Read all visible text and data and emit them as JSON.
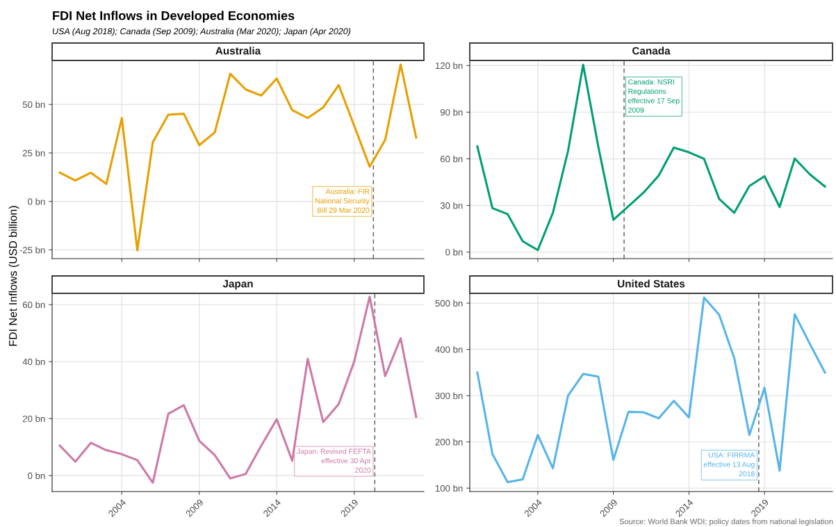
{
  "chart_data": [
    {
      "type": "line",
      "title": "Australia",
      "ylabel": "FDI Net Inflows (USD billion)",
      "annotations": [
        "FDI Net Inflows in Developed Economies",
        "USA (Aug 2018); Canada (Sep 2009); Australia (Mar 2020); Japan (Apr 2020)",
        {
          "text": "Australia: FIR\nNational Security\nBill 29 Mar 2020",
          "x": 2020.24,
          "y": 0
        }
      ],
      "x": [
        2000,
        2001,
        2002,
        2003,
        2004,
        2005,
        2006,
        2007,
        2008,
        2009,
        2010,
        2011,
        2012,
        2013,
        2014,
        2015,
        2016,
        2017,
        2018,
        2019,
        2020,
        2021,
        2022,
        2023
      ],
      "series": [
        {
          "color": "#e69f00",
          "values": [
            14.8,
            10.8,
            14.8,
            9.0,
            43.0,
            -25.2,
            30.5,
            44.7,
            45.2,
            29.0,
            35.6,
            65.8,
            57.7,
            54.6,
            63.4,
            47.1,
            43.0,
            48.5,
            60,
            39,
            17.9,
            31.7,
            70.6,
            32.9
          ]
        }
      ],
      "xlim": [
        1999.5,
        2023.5
      ],
      "xticks": [
        2004,
        2009,
        2014,
        2019
      ],
      "ylim": [
        -29.5,
        72.3
      ],
      "yticks": [
        {
          "value": -25,
          "label": "-25 bn"
        },
        {
          "value": 0,
          "label": "0 bn"
        },
        {
          "value": 25,
          "label": "25 bn"
        },
        {
          "value": 50,
          "label": "50 bn"
        }
      ],
      "ref_lines": [
        {
          "axis": "x",
          "value": 2020.24,
          "color": "#666666",
          "line_style": "dashed"
        }
      ],
      "grid": true,
      "tick_labels": "y"
    },
    {
      "type": "line",
      "title": "Canada",
      "annotations": [
        {
          "text": "Canada: NSRI\nRegulations\neffective 17 Sep\n2009",
          "x": 2009.71,
          "y": 100
        }
      ],
      "x": [
        2000,
        2001,
        2002,
        2003,
        2004,
        2005,
        2006,
        2007,
        2008,
        2009,
        2010,
        2011,
        2012,
        2013,
        2014,
        2015,
        2016,
        2017,
        2018,
        2019,
        2020,
        2021,
        2022,
        2023
      ],
      "series": [
        {
          "color": "#009e73",
          "values": [
            68,
            28.3,
            24.5,
            7,
            1.3,
            25.3,
            65,
            120.5,
            68,
            20.8,
            29.5,
            38.3,
            49.2,
            67.2,
            64.2,
            60,
            34.2,
            25.3,
            42.5,
            48.8,
            29,
            60.2,
            50,
            42.2
          ]
        }
      ],
      "xlim": [
        1999.5,
        2023.5
      ],
      "xticks": [
        2004,
        2009,
        2014,
        2019
      ],
      "ylim": [
        -4.2,
        122.8
      ],
      "yticks": [
        {
          "value": 0,
          "label": "0 bn"
        },
        {
          "value": 30,
          "label": "30 bn"
        },
        {
          "value": 60,
          "label": "60 bn"
        },
        {
          "value": 90,
          "label": "90 bn"
        },
        {
          "value": 120,
          "label": "120 bn"
        }
      ],
      "ref_lines": [
        {
          "axis": "x",
          "value": 2009.71,
          "color": "#666666",
          "line_style": "dashed"
        }
      ],
      "grid": true,
      "tick_labels": "y"
    },
    {
      "type": "line",
      "title": "Japan",
      "annotations": [
        {
          "text": "Japan: Revised FEFTA\neffective 30 Apr\n2020",
          "x": 2020.33,
          "y": 5
        }
      ],
      "x": [
        2000,
        2001,
        2002,
        2003,
        2004,
        2005,
        2006,
        2007,
        2008,
        2009,
        2010,
        2011,
        2012,
        2013,
        2014,
        2015,
        2016,
        2017,
        2018,
        2019,
        2020,
        2021,
        2022,
        2023
      ],
      "series": [
        {
          "color": "#cc79a7",
          "values": [
            10.5,
            4.9,
            11.5,
            8.9,
            7.5,
            5.4,
            -2.5,
            21.7,
            24.7,
            12.2,
            7.2,
            -1,
            0.6,
            10.5,
            19.8,
            5.2,
            41,
            18.8,
            25.1,
            40,
            62.8,
            34.9,
            48.2,
            20.6
          ]
        }
      ],
      "xlim": [
        1999.5,
        2023.5
      ],
      "xticks": [
        2004,
        2009,
        2014,
        2019
      ],
      "ylim": [
        -5.6,
        63.7
      ],
      "yticks": [
        {
          "value": 0,
          "label": "0 bn"
        },
        {
          "value": 20,
          "label": "20 bn"
        },
        {
          "value": 40,
          "label": "40 bn"
        },
        {
          "value": 60,
          "label": "60 bn"
        }
      ],
      "ref_lines": [
        {
          "axis": "x",
          "value": 2020.33,
          "color": "#666666",
          "line_style": "dashed"
        }
      ],
      "grid": true
    },
    {
      "type": "line",
      "title": "United States",
      "annotations": [
        {
          "text": "USA: FIRRMA\neffective 13 Aug\n2018",
          "x": 2018.62,
          "y": 150
        },
        "Source: World Bank WDI; policy dates from national legislation"
      ],
      "x": [
        2000,
        2001,
        2002,
        2003,
        2004,
        2005,
        2006,
        2007,
        2008,
        2009,
        2010,
        2011,
        2012,
        2013,
        2014,
        2015,
        2016,
        2017,
        2018,
        2019,
        2020,
        2021,
        2022,
        2023
      ],
      "series": [
        {
          "color": "#56b4e9",
          "values": [
            350,
            174,
            113,
            119,
            215,
            143,
            300,
            347,
            341,
            161,
            265,
            264,
            251,
            289,
            253,
            512,
            475,
            381,
            215,
            317,
            138,
            476,
            412,
            350
          ]
        }
      ],
      "xlim": [
        1999.5,
        2023.5
      ],
      "xticks": [
        2004,
        2009,
        2014,
        2019
      ],
      "ylim": [
        92.7,
        519.6
      ],
      "yticks": [
        {
          "value": 100,
          "label": "100 bn"
        },
        {
          "value": 200,
          "label": "200 bn"
        },
        {
          "value": 300,
          "label": "300 bn"
        },
        {
          "value": 400,
          "label": "400 bn"
        },
        {
          "value": 500,
          "label": "500 bn"
        }
      ],
      "ref_lines": [
        {
          "axis": "x",
          "value": 2018.62,
          "color": "#666666",
          "line_style": "dashed"
        }
      ],
      "grid": true
    }
  ]
}
